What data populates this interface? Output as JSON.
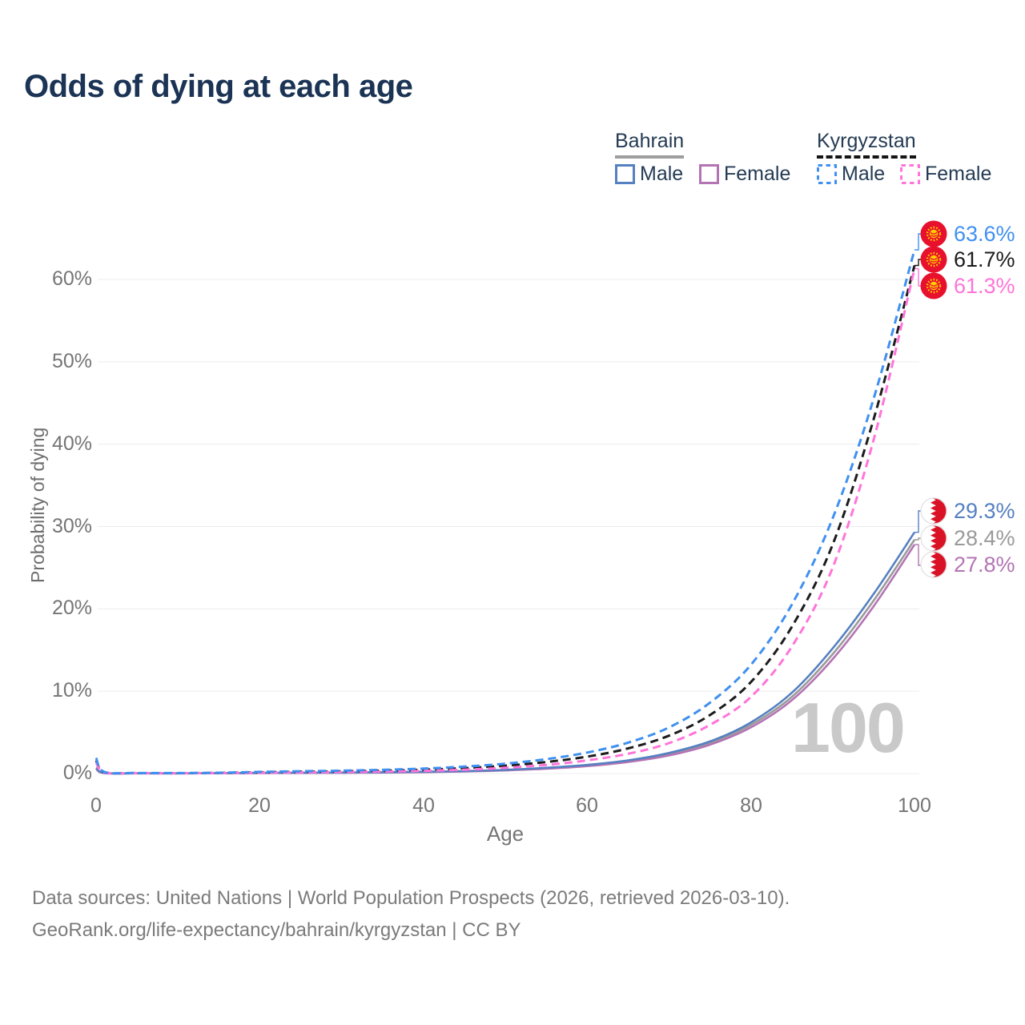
{
  "title": "Odds of dying at each age",
  "legend": {
    "bahrain": {
      "label": "Bahrain",
      "male": "Male",
      "female": "Female"
    },
    "kyrgyzstan": {
      "label": "Kyrgyzstan",
      "male": "Male",
      "female": "Female"
    }
  },
  "watermark": "100",
  "footer": {
    "sources": "Data sources: United Nations | World Population Prospects (2026, retrieved 2026-03-10).",
    "attribution": "GeoRank.org/life-expectancy/bahrain/kyrgyzstan | CC BY"
  },
  "chart_data": {
    "type": "line",
    "title": "Odds of dying at each age",
    "xlabel": "Age",
    "ylabel": "Probability of dying",
    "x_ticks": [
      "0",
      "20",
      "40",
      "60",
      "80",
      "100"
    ],
    "y_ticks": [
      "0%",
      "10%",
      "20%",
      "30%",
      "40%",
      "50%",
      "60%"
    ],
    "xlim": [
      0,
      100
    ],
    "ylim_percent": [
      0,
      66
    ],
    "grid": "horizontal",
    "legend_position": "top-right",
    "ages": [
      0,
      1,
      5,
      10,
      15,
      20,
      25,
      30,
      35,
      40,
      45,
      50,
      55,
      60,
      65,
      70,
      75,
      80,
      85,
      90,
      95,
      100
    ],
    "value_unit": "percent",
    "series": [
      {
        "name": "Bahrain Male",
        "country": "Bahrain",
        "sex": "male",
        "style": "solid",
        "color": "#5580c1",
        "end_label": "29.3%",
        "values": [
          0.7,
          0.07,
          0.03,
          0.03,
          0.05,
          0.08,
          0.1,
          0.12,
          0.16,
          0.22,
          0.3,
          0.45,
          0.7,
          1.05,
          1.6,
          2.5,
          3.9,
          6.2,
          9.8,
          15.2,
          21.8,
          29.3
        ]
      },
      {
        "name": "Bahrain Both sexes",
        "country": "Bahrain",
        "sex": "both",
        "style": "solid",
        "color": "#9a9a9a",
        "end_label": "28.4%",
        "values": [
          0.62,
          0.06,
          0.03,
          0.02,
          0.04,
          0.07,
          0.09,
          0.11,
          0.14,
          0.2,
          0.28,
          0.42,
          0.65,
          0.98,
          1.5,
          2.35,
          3.7,
          5.9,
          9.3,
          14.5,
          21.0,
          28.4
        ]
      },
      {
        "name": "Bahrain Female",
        "country": "Bahrain",
        "sex": "female",
        "style": "solid",
        "color": "#b474b4",
        "end_label": "27.8%",
        "values": [
          0.55,
          0.05,
          0.02,
          0.02,
          0.03,
          0.05,
          0.07,
          0.09,
          0.12,
          0.17,
          0.25,
          0.38,
          0.58,
          0.9,
          1.4,
          2.2,
          3.5,
          5.6,
          8.9,
          13.9,
          20.3,
          27.8
        ]
      },
      {
        "name": "Kyrgyzstan Male",
        "country": "Kyrgyzstan",
        "sex": "male",
        "style": "dashed",
        "color": "#3f90f0",
        "end_label": "63.6%",
        "values": [
          1.9,
          0.2,
          0.07,
          0.06,
          0.1,
          0.2,
          0.28,
          0.35,
          0.45,
          0.6,
          0.85,
          1.2,
          1.75,
          2.55,
          3.75,
          5.6,
          8.6,
          13.2,
          20.5,
          31.0,
          45.5,
          63.6
        ]
      },
      {
        "name": "Kyrgyzstan Both sexes",
        "country": "Kyrgyzstan",
        "sex": "both",
        "style": "dashed",
        "color": "#1c1c1c",
        "end_label": "61.7%",
        "values": [
          1.6,
          0.17,
          0.06,
          0.05,
          0.08,
          0.15,
          0.21,
          0.27,
          0.35,
          0.47,
          0.66,
          0.95,
          1.4,
          2.05,
          3.05,
          4.6,
          7.1,
          11.1,
          17.8,
          27.8,
          43.0,
          61.7
        ]
      },
      {
        "name": "Kyrgyzstan Female",
        "country": "Kyrgyzstan",
        "sex": "female",
        "style": "dashed",
        "color": "#ff74d9",
        "end_label": "61.3%",
        "values": [
          1.35,
          0.14,
          0.05,
          0.04,
          0.06,
          0.1,
          0.14,
          0.18,
          0.24,
          0.33,
          0.47,
          0.7,
          1.05,
          1.6,
          2.4,
          3.7,
          5.9,
          9.3,
          15.4,
          25.0,
          40.5,
          61.3
        ]
      }
    ]
  }
}
